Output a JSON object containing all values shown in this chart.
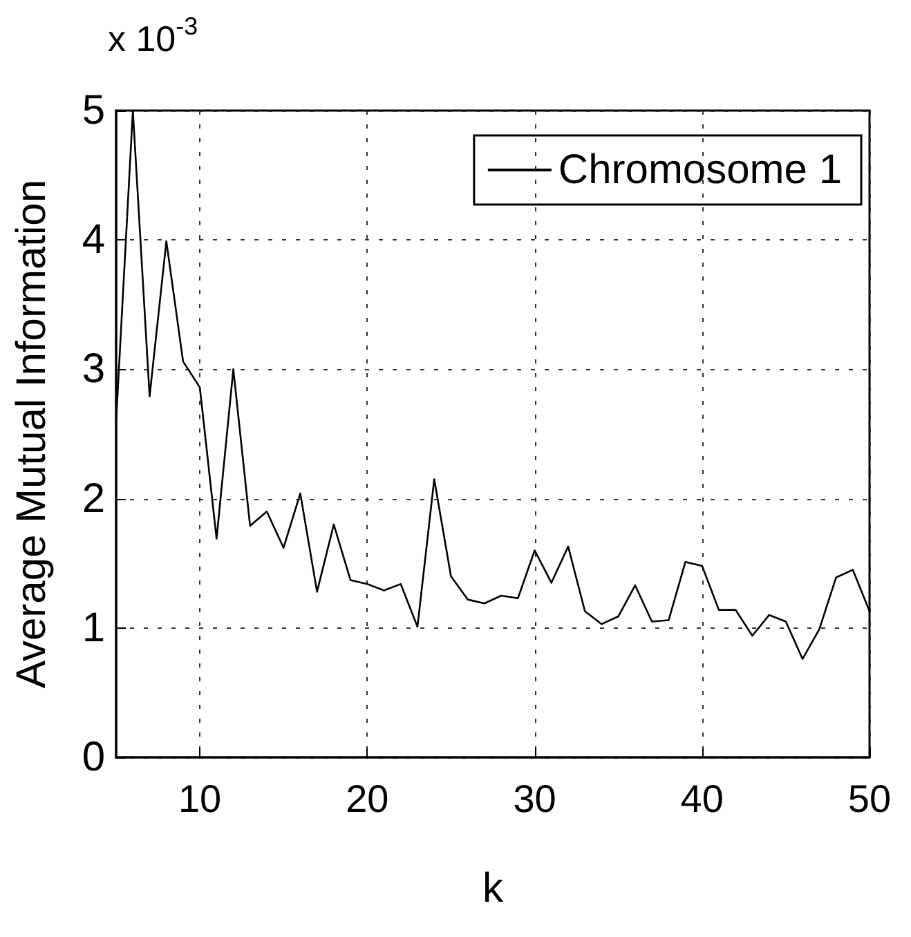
{
  "chart_data": {
    "type": "line",
    "xlabel": "k",
    "ylabel": "Average Mutual Information",
    "annotations": [
      "x 10$^{-3}$"
    ],
    "x": [
      5,
      6,
      7,
      8,
      9,
      10,
      11,
      12,
      13,
      14,
      15,
      16,
      17,
      18,
      19,
      20,
      21,
      22,
      23,
      24,
      25,
      26,
      27,
      28,
      29,
      30,
      31,
      32,
      33,
      34,
      35,
      36,
      37,
      38,
      39,
      40,
      41,
      42,
      43,
      44,
      45,
      46,
      47,
      48,
      49,
      50
    ],
    "series": [
      {
        "name": "Chromosome 1",
        "color": "#000000",
        "values": [
          2.6,
          5.0,
          2.79,
          3.99,
          3.06,
          2.86,
          1.69,
          3.0,
          1.79,
          1.9,
          1.62,
          2.04,
          1.28,
          1.8,
          1.37,
          1.34,
          1.29,
          1.34,
          1.01,
          2.15,
          1.4,
          1.22,
          1.19,
          1.25,
          1.23,
          1.6,
          1.35,
          1.63,
          1.13,
          1.03,
          1.09,
          1.33,
          1.05,
          1.06,
          1.51,
          1.48,
          1.14,
          1.14,
          0.94,
          1.1,
          1.05,
          0.76,
          0.99,
          1.39,
          1.45,
          1.13
        ]
      }
    ],
    "xlim": [
      5,
      50
    ],
    "xticks": [
      10,
      20,
      30,
      40,
      50
    ],
    "ylim": [
      0,
      5
    ],
    "yticks": [
      0,
      1,
      2,
      3,
      4,
      5
    ],
    "grid": true,
    "legend": "top right",
    "marker": "none",
    "line_style": "solid"
  }
}
